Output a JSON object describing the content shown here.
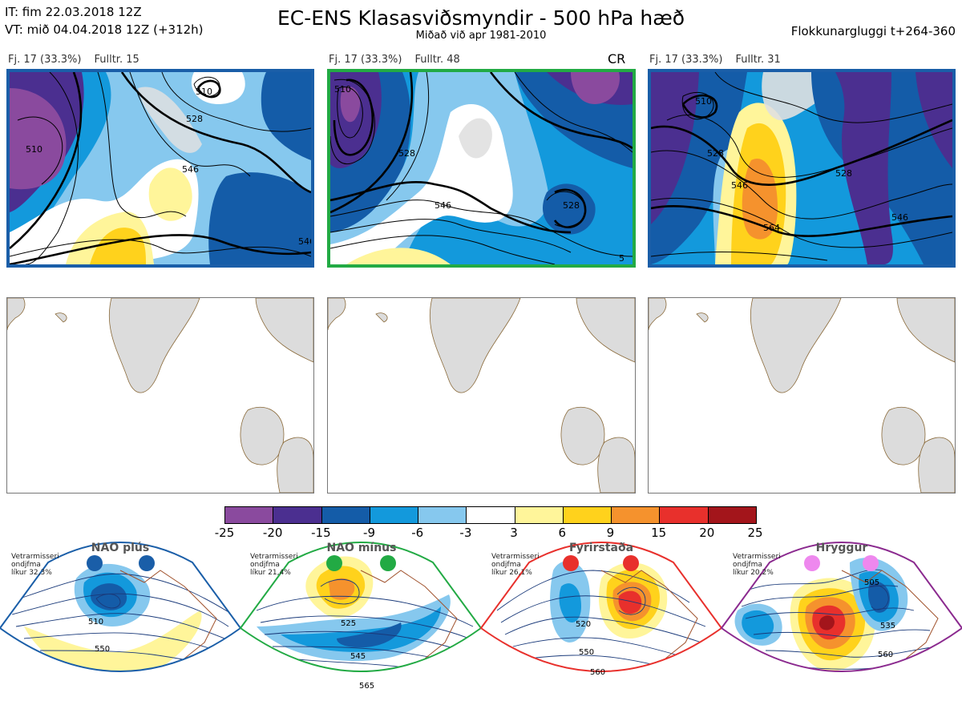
{
  "header": {
    "it_line": "IT: fim 22.03.2018 12Z",
    "vt_line": "VT: mið 04.04.2018 12Z  (+312h)",
    "title": "EC-ENS Klasasviðsmyndir - 500 hPa hæð",
    "subtitle": "Miðað við apr 1981-2010",
    "window": "Flokkunargluggi t+264-360"
  },
  "panels": [
    {
      "freq": "Fj. 17 (33.3%)",
      "rep": "Fulltr. 15",
      "tag": "",
      "border": "#1a5ea8",
      "contours": [
        "510",
        "528",
        "546",
        "546",
        "510"
      ]
    },
    {
      "freq": "Fj. 17 (33.3%)",
      "rep": "Fulltr. 48",
      "tag": "CR",
      "border": "#22aa44",
      "contours": [
        "510",
        "528",
        "546",
        "528",
        "5"
      ]
    },
    {
      "freq": "Fj. 17 (33.3%)",
      "rep": "Fulltr. 31",
      "tag": "",
      "border": "#1a5ea8",
      "contours": [
        "510",
        "528",
        "546",
        "528",
        "546",
        "564"
      ]
    }
  ],
  "colorbar": {
    "ticks": [
      "-25",
      "-20",
      "-15",
      "-9",
      "-6",
      "-3",
      "3",
      "6",
      "9",
      "15",
      "20",
      "25"
    ],
    "colors": [
      "#8a4a9e",
      "#4b2f90",
      "#145ca8",
      "#1399dc",
      "#86c8ee",
      "#ffffff",
      "#fff59a",
      "#ffd21c",
      "#f5922d",
      "#e8302c",
      "#a3151b"
    ]
  },
  "regimes": [
    {
      "name": "NAO plús",
      "note": [
        "Vetrarmisseri",
        "ondjfma",
        "líkur 32,3%"
      ],
      "color": "#1a5ea8",
      "dot_color": "#1a5ea8",
      "labels": [
        "510",
        "550"
      ]
    },
    {
      "name": "NAO mínus",
      "note": [
        "Vetrarmisseri",
        "ondjfma",
        "líkur 21,4%"
      ],
      "color": "#22aa44",
      "dot_color": "#22aa44",
      "labels": [
        "525",
        "545",
        "565"
      ]
    },
    {
      "name": "Fyrirstaða",
      "note": [
        "Vetrarmisseri",
        "ondjfma",
        "líkur 26,1%"
      ],
      "color": "#e8302c",
      "dot_color": "#e8302c",
      "labels": [
        "520",
        "550",
        "560"
      ]
    },
    {
      "name": "Hryggur",
      "note": [
        "Vetrarmisseri",
        "ondjfma",
        "líkur 20,2%"
      ],
      "color": "#8b2a8f",
      "dot_color": "#ee88ee",
      "labels": [
        "505",
        "535",
        "560"
      ]
    }
  ]
}
